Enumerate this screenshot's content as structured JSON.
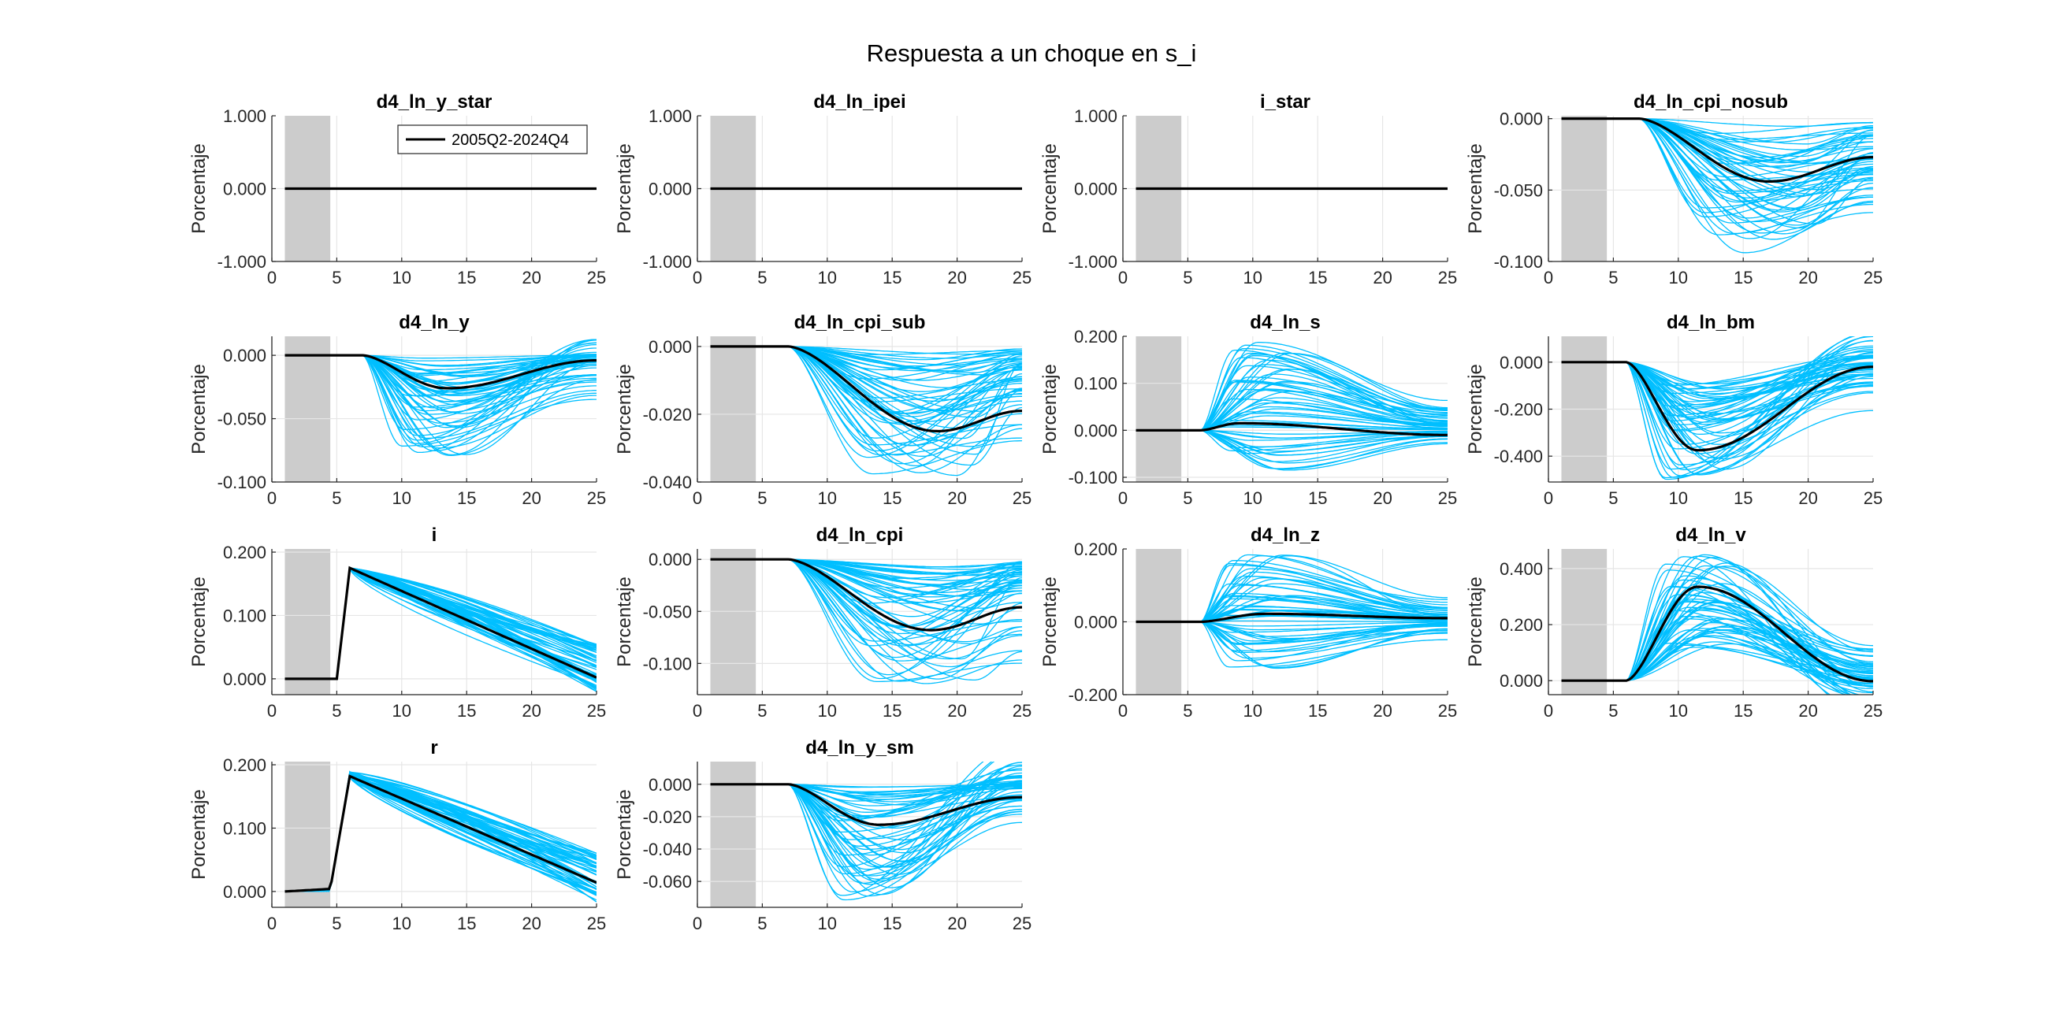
{
  "figure_title": "Respuesta a un choque en s_i",
  "legend_label": "2005Q2-2024Q4",
  "colors": {
    "median": "#000000",
    "draws": "#00bfff",
    "shade": "#cccccc",
    "grid": "#e6e6e6"
  },
  "chart_data": [
    {
      "type": "line",
      "title": "d4_ln_y_star",
      "ylabel": "Porcentaje",
      "xlim": [
        0,
        25
      ],
      "ylim": [
        -1,
        1
      ],
      "yticks": [
        -1,
        0,
        1
      ],
      "ytick_labels": [
        "-1.000",
        "0.000",
        "1.000"
      ],
      "xticks": [
        0,
        5,
        10,
        15,
        20,
        25
      ],
      "xtick_labels": [
        "0",
        "5",
        "10",
        "15",
        "20",
        "25"
      ],
      "shade": [
        1,
        4.5
      ],
      "grid": true,
      "legend": "top-right",
      "median": {
        "name": "2005Q2-2024Q4",
        "shape": "flat",
        "start": 7,
        "end": 25,
        "peak_x": 15,
        "peak_y": 0,
        "end_y": 0
      },
      "draws": {
        "count": 0
      }
    },
    {
      "type": "line",
      "title": "d4_ln_ipei",
      "ylabel": "Porcentaje",
      "xlim": [
        0,
        25
      ],
      "ylim": [
        -1,
        1
      ],
      "yticks": [
        -1,
        0,
        1
      ],
      "ytick_labels": [
        "-1.000",
        "0.000",
        "1.000"
      ],
      "xticks": [
        0,
        5,
        10,
        15,
        20,
        25
      ],
      "xtick_labels": [
        "0",
        "5",
        "10",
        "15",
        "20",
        "25"
      ],
      "shade": [
        1,
        4.5
      ],
      "grid": true,
      "median": {
        "shape": "flat",
        "start": 7,
        "end": 25,
        "peak_x": 15,
        "peak_y": 0,
        "end_y": 0
      },
      "draws": {
        "count": 0
      }
    },
    {
      "type": "line",
      "title": "i_star",
      "ylabel": "Porcentaje",
      "xlim": [
        0,
        25
      ],
      "ylim": [
        -1,
        1
      ],
      "yticks": [
        -1,
        0,
        1
      ],
      "ytick_labels": [
        "-1.000",
        "0.000",
        "1.000"
      ],
      "xticks": [
        0,
        5,
        10,
        15,
        20,
        25
      ],
      "xtick_labels": [
        "0",
        "5",
        "10",
        "15",
        "20",
        "25"
      ],
      "shade": [
        1,
        4.5
      ],
      "grid": true,
      "median": {
        "shape": "flat",
        "start": 7,
        "end": 25,
        "peak_x": 15,
        "peak_y": 0,
        "end_y": 0
      },
      "draws": {
        "count": 0
      }
    },
    {
      "type": "line",
      "title": "d4_ln_cpi_nosub",
      "ylabel": "Porcentaje",
      "xlim": [
        0,
        25
      ],
      "ylim": [
        -0.1,
        0.002
      ],
      "yticks": [
        -0.1,
        -0.05,
        0
      ],
      "ytick_labels": [
        "-0.100",
        "-0.050",
        "0.000"
      ],
      "xticks": [
        0,
        5,
        10,
        15,
        20,
        25
      ],
      "xtick_labels": [
        "0",
        "5",
        "10",
        "15",
        "20",
        "25"
      ],
      "shade": [
        1,
        4.5
      ],
      "grid": true,
      "median": {
        "shape": "hump",
        "start": 7,
        "end": 25,
        "peak_x": 17,
        "peak_y": -0.044,
        "end_y": -0.027
      },
      "draws": {
        "count": 55,
        "peak_x": [
          12,
          21
        ],
        "peak_y": [
          -0.095,
          -0.005
        ],
        "end_frac": [
          0.2,
          0.9
        ],
        "shared_end": false
      }
    },
    {
      "type": "line",
      "title": "d4_ln_y",
      "ylabel": "Porcentaje",
      "xlim": [
        0,
        25
      ],
      "ylim": [
        -0.1,
        0.015
      ],
      "yticks": [
        -0.1,
        -0.05,
        0
      ],
      "ytick_labels": [
        "-0.100",
        "-0.050",
        "0.000"
      ],
      "xticks": [
        0,
        5,
        10,
        15,
        20,
        25
      ],
      "xtick_labels": [
        "0",
        "5",
        "10",
        "15",
        "20",
        "25"
      ],
      "shade": [
        1,
        4.5
      ],
      "grid": true,
      "median": {
        "shape": "hump",
        "start": 7,
        "end": 25,
        "peak_x": 13.5,
        "peak_y": -0.026,
        "end_y": -0.004
      },
      "draws": {
        "count": 55,
        "peak_x": [
          10,
          15
        ],
        "peak_y": [
          -0.082,
          -0.001
        ],
        "end_frac": [
          -0.25,
          0.5
        ],
        "shared_end": false
      }
    },
    {
      "type": "line",
      "title": "d4_ln_cpi_sub",
      "ylabel": "Porcentaje",
      "xlim": [
        0,
        25
      ],
      "ylim": [
        -0.04,
        0.003
      ],
      "yticks": [
        -0.04,
        -0.02,
        0
      ],
      "ytick_labels": [
        "-0.040",
        "-0.020",
        "0.000"
      ],
      "xticks": [
        0,
        5,
        10,
        15,
        20,
        25
      ],
      "xtick_labels": [
        "0",
        "5",
        "10",
        "15",
        "20",
        "25"
      ],
      "shade": [
        1,
        4.5
      ],
      "grid": true,
      "median": {
        "shape": "hump",
        "start": 7,
        "end": 25,
        "peak_x": 18.5,
        "peak_y": -0.025,
        "end_y": -0.019
      },
      "draws": {
        "count": 55,
        "peak_x": [
          13,
          22
        ],
        "peak_y": [
          -0.039,
          -0.001
        ],
        "end_frac": [
          0.15,
          0.85
        ],
        "shared_end": false
      }
    },
    {
      "type": "line",
      "title": "d4_ln_s",
      "ylabel": "Porcentaje",
      "xlim": [
        0,
        25
      ],
      "ylim": [
        -0.11,
        0.2
      ],
      "yticks": [
        -0.1,
        0,
        0.1,
        0.2
      ],
      "ytick_labels": [
        "-0.100",
        "0.000",
        "0.100",
        "0.200"
      ],
      "xticks": [
        0,
        5,
        10,
        15,
        20,
        25
      ],
      "xtick_labels": [
        "0",
        "5",
        "10",
        "15",
        "20",
        "25"
      ],
      "shade": [
        1,
        4.5
      ],
      "grid": true,
      "median": {
        "shape": "hump",
        "start": 6,
        "end": 25,
        "peak_x": 9,
        "peak_y": 0.015,
        "end_y": -0.01
      },
      "draws": {
        "count": 55,
        "peak_x": [
          8,
          13
        ],
        "peak_y": [
          -0.09,
          0.19
        ],
        "end_frac": [
          0.05,
          0.35
        ],
        "shared_end": false
      }
    },
    {
      "type": "line",
      "title": "d4_ln_bm",
      "ylabel": "Porcentaje",
      "xlim": [
        0,
        25
      ],
      "ylim": [
        -0.51,
        0.11
      ],
      "yticks": [
        -0.4,
        -0.2,
        0
      ],
      "ytick_labels": [
        "-0.400",
        "-0.200",
        "0.000"
      ],
      "xticks": [
        0,
        5,
        10,
        15,
        20,
        25
      ],
      "xtick_labels": [
        "0",
        "5",
        "10",
        "15",
        "20",
        "25"
      ],
      "shade": [
        1,
        4.5
      ],
      "grid": true,
      "median": {
        "shape": "hump",
        "start": 6,
        "end": 25,
        "peak_x": 11.5,
        "peak_y": -0.375,
        "end_y": -0.02
      },
      "draws": {
        "count": 55,
        "peak_x": [
          9,
          14
        ],
        "peak_y": [
          -0.5,
          -0.05
        ],
        "end_frac": [
          -0.3,
          0.45
        ],
        "shared_end": false
      }
    },
    {
      "type": "line",
      "title": "i",
      "ylabel": "Porcentaje",
      "xlim": [
        0,
        25
      ],
      "ylim": [
        -0.025,
        0.205
      ],
      "yticks": [
        0,
        0.1,
        0.2
      ],
      "ytick_labels": [
        "0.000",
        "0.100",
        "0.200"
      ],
      "xticks": [
        0,
        5,
        10,
        15,
        20,
        25
      ],
      "xtick_labels": [
        "0",
        "5",
        "10",
        "15",
        "20",
        "25"
      ],
      "shade": [
        1,
        4.5
      ],
      "grid": true,
      "median": {
        "shape": "jump",
        "start": 5,
        "end": 25,
        "peak_x": 6,
        "peak_y": 0.175,
        "end_y": 0.002
      },
      "draws": {
        "count": 55,
        "peak_x": [
          6,
          6
        ],
        "peak_y": [
          0.172,
          0.176
        ],
        "end_y_range": [
          -0.022,
          0.055
        ],
        "shared_end": false
      }
    },
    {
      "type": "line",
      "title": "d4_ln_cpi",
      "ylabel": "Porcentaje",
      "xlim": [
        0,
        25
      ],
      "ylim": [
        -0.13,
        0.01
      ],
      "yticks": [
        -0.1,
        -0.05,
        0
      ],
      "ytick_labels": [
        "-0.100",
        "-0.050",
        "0.000"
      ],
      "xticks": [
        0,
        5,
        10,
        15,
        20,
        25
      ],
      "xtick_labels": [
        "0",
        "5",
        "10",
        "15",
        "20",
        "25"
      ],
      "shade": [
        1,
        4.5
      ],
      "grid": true,
      "median": {
        "shape": "hump",
        "start": 7,
        "end": 25,
        "peak_x": 18,
        "peak_y": -0.068,
        "end_y": -0.046
      },
      "draws": {
        "count": 55,
        "peak_x": [
          13,
          22
        ],
        "peak_y": [
          -0.125,
          -0.005
        ],
        "end_frac": [
          0.1,
          0.85
        ],
        "shared_end": false
      }
    },
    {
      "type": "line",
      "title": "d4_ln_z",
      "ylabel": "Porcentaje",
      "xlim": [
        0,
        25
      ],
      "ylim": [
        -0.2,
        0.2
      ],
      "yticks": [
        -0.2,
        0,
        0.2
      ],
      "ytick_labels": [
        "-0.200",
        "0.000",
        "0.200"
      ],
      "xticks": [
        0,
        5,
        10,
        15,
        20,
        25
      ],
      "xtick_labels": [
        "0",
        "5",
        "10",
        "15",
        "20",
        "25"
      ],
      "shade": [
        1,
        4.5
      ],
      "grid": true,
      "median": {
        "shape": "hump",
        "start": 6,
        "end": 25,
        "peak_x": 11,
        "peak_y": 0.022,
        "end_y": 0.01
      },
      "draws": {
        "count": 55,
        "peak_x": [
          8,
          13
        ],
        "peak_y": [
          -0.13,
          0.19
        ],
        "end_frac": [
          0.05,
          0.4
        ],
        "shared_end": false
      }
    },
    {
      "type": "line",
      "title": "d4_ln_v",
      "ylabel": "Porcentaje",
      "xlim": [
        0,
        25
      ],
      "ylim": [
        -0.05,
        0.47
      ],
      "yticks": [
        0,
        0.2,
        0.4
      ],
      "ytick_labels": [
        "0.000",
        "0.200",
        "0.400"
      ],
      "xticks": [
        0,
        5,
        10,
        15,
        20,
        25
      ],
      "xtick_labels": [
        "0",
        "5",
        "10",
        "15",
        "20",
        "25"
      ],
      "shade": [
        1,
        4.5
      ],
      "grid": true,
      "median": {
        "shape": "hump",
        "start": 6,
        "end": 25,
        "peak_x": 11.5,
        "peak_y": 0.335,
        "end_y": -0.002
      },
      "draws": {
        "count": 55,
        "peak_x": [
          9,
          14
        ],
        "peak_y": [
          0.08,
          0.45
        ],
        "end_frac": [
          -0.3,
          0.35
        ],
        "shared_end": false
      }
    },
    {
      "type": "line",
      "title": "r",
      "ylabel": "Porcentaje",
      "xlim": [
        0,
        25
      ],
      "ylim": [
        -0.025,
        0.205
      ],
      "yticks": [
        0,
        0.1,
        0.2
      ],
      "ytick_labels": [
        "0.000",
        "0.100",
        "0.200"
      ],
      "xticks": [
        0,
        5,
        10,
        15,
        20,
        25
      ],
      "xtick_labels": [
        "0",
        "5",
        "10",
        "15",
        "20",
        "25"
      ],
      "shade": [
        1,
        4.5
      ],
      "grid": true,
      "median": {
        "shape": "jump",
        "start": 4.5,
        "end": 25,
        "pre_y": 0.004,
        "peak_x": 6,
        "peak_y": 0.182,
        "end_y": 0.014
      },
      "draws": {
        "count": 55,
        "peak_x": [
          6,
          6
        ],
        "peak_y": [
          0.178,
          0.19
        ],
        "end_y_range": [
          -0.02,
          0.068
        ],
        "shared_end": false
      }
    },
    {
      "type": "line",
      "title": "d4_ln_y_sm",
      "ylabel": "Porcentaje",
      "xlim": [
        0,
        25
      ],
      "ylim": [
        -0.076,
        0.014
      ],
      "yticks": [
        -0.06,
        -0.04,
        -0.02,
        0
      ],
      "ytick_labels": [
        "-0.060",
        "-0.040",
        "-0.020",
        "0.000"
      ],
      "xticks": [
        0,
        5,
        10,
        15,
        20,
        25
      ],
      "xtick_labels": [
        "0",
        "5",
        "10",
        "15",
        "20",
        "25"
      ],
      "shade": [
        1,
        4.5
      ],
      "grid": true,
      "median": {
        "shape": "hump",
        "start": 7,
        "end": 25,
        "peak_x": 14,
        "peak_y": -0.025,
        "end_y": -0.008
      },
      "draws": {
        "count": 55,
        "peak_x": [
          11,
          16
        ],
        "peak_y": [
          -0.076,
          -0.001
        ],
        "end_frac": [
          -0.4,
          0.5
        ],
        "shared_end": false
      }
    }
  ]
}
